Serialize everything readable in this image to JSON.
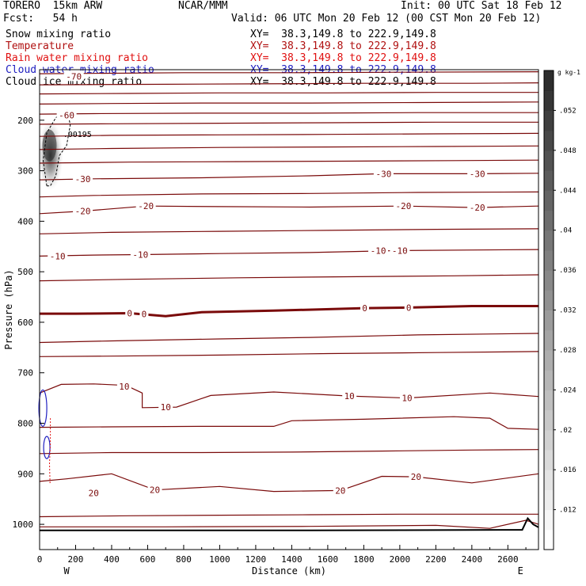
{
  "header": {
    "model": "TORERO  15km ARW",
    "fcst": "Fcst:   54 h",
    "org": "NCAR/MMM",
    "init": "Init: 00 UTC Sat 18 Feb 12",
    "valid": "Valid: 06 UTC Mon 20 Feb 12 (00 CST Mon 20 Feb 12)"
  },
  "fields": [
    {
      "name": "Snow mixing ratio",
      "xy": "XY=  38.3,149.8 to 222.9,149.8",
      "color": "#000000"
    },
    {
      "name": "Temperature",
      "xy": "XY=  38.3,149.8 to 222.9,149.8",
      "color": "#b01010"
    },
    {
      "name": "Rain water mixing ratio",
      "xy": "XY=  38.3,149.8 to 222.9,149.8",
      "color": "#e01010"
    },
    {
      "name": "Cloud water mixing ratio",
      "xy": "XY=  38.3,149.8 to 222.9,149.8",
      "color": "#2020c0"
    },
    {
      "name": "Cloud ice mixing ratio",
      "xy": "XY=  38.3,149.8 to 222.9,149.8",
      "color": "#000000"
    }
  ],
  "chart_data": {
    "type": "cross-section",
    "xlabel": "Distance (km)",
    "ylabel": "Pressure (hPa)",
    "xlim": [
      0,
      2770
    ],
    "ylim": [
      1050,
      100
    ],
    "x_ticks": [
      0,
      200,
      400,
      600,
      800,
      1000,
      1200,
      1400,
      1600,
      1800,
      2000,
      2200,
      2400,
      2600
    ],
    "x_tick_labels": [
      "0",
      "200",
      "400",
      "600",
      "800",
      "1000",
      "1200",
      "1400",
      "1600",
      "1800",
      "2000",
      "2200",
      "2400",
      "2600"
    ],
    "y_ticks": [
      200,
      300,
      400,
      500,
      600,
      700,
      800,
      900,
      1000
    ],
    "y_tick_labels": [
      "200",
      "300",
      "400",
      "500",
      "600",
      "700",
      "800",
      "900",
      "1000"
    ],
    "left_end_label": "W",
    "right_end_label": "E",
    "temperature_contour_labels": [
      {
        "text": "-70",
        "x": 190,
        "p": 113
      },
      {
        "text": "-60",
        "x": 150,
        "p": 190
      },
      {
        "text": "-30",
        "x": 240,
        "p": 316
      },
      {
        "text": "-30",
        "x": 1910,
        "p": 306
      },
      {
        "text": "-30",
        "x": 2430,
        "p": 306
      },
      {
        "text": "-20",
        "x": 240,
        "p": 380
      },
      {
        "text": "-20",
        "x": 590,
        "p": 370
      },
      {
        "text": "-20",
        "x": 2020,
        "p": 370
      },
      {
        "text": "-20",
        "x": 2430,
        "p": 373
      },
      {
        "text": "-10",
        "x": 100,
        "p": 469
      },
      {
        "text": "-10",
        "x": 560,
        "p": 466
      },
      {
        "text": "-10",
        "x": 1880,
        "p": 458
      },
      {
        "text": "-10",
        "x": 2000,
        "p": 458
      },
      {
        "text": "0",
        "x": 500,
        "p": 582
      },
      {
        "text": "0",
        "x": 580,
        "p": 584
      },
      {
        "text": "0",
        "x": 1805,
        "p": 572
      },
      {
        "text": "0",
        "x": 2050,
        "p": 571
      },
      {
        "text": "10",
        "x": 470,
        "p": 727
      },
      {
        "text": "10",
        "x": 700,
        "p": 768
      },
      {
        "text": "10",
        "x": 1720,
        "p": 746
      },
      {
        "text": "10",
        "x": 2040,
        "p": 750
      },
      {
        "text": "20",
        "x": 300,
        "p": 938
      },
      {
        "text": "20",
        "x": 640,
        "p": 932
      },
      {
        "text": "20",
        "x": 1670,
        "p": 933
      },
      {
        "text": "20",
        "x": 2090,
        "p": 906
      }
    ],
    "snow_label": {
      "text": ".00195",
      "x": 210,
      "p": 227
    },
    "colorbar": {
      "unit": "g kg-1",
      "ticks": [
        ".012",
        ".016",
        ".02",
        ".024",
        ".028",
        ".032",
        ".036",
        ".04",
        ".044",
        ".048",
        ".052"
      ],
      "vmin": 0.008,
      "vmax": 0.056
    }
  }
}
